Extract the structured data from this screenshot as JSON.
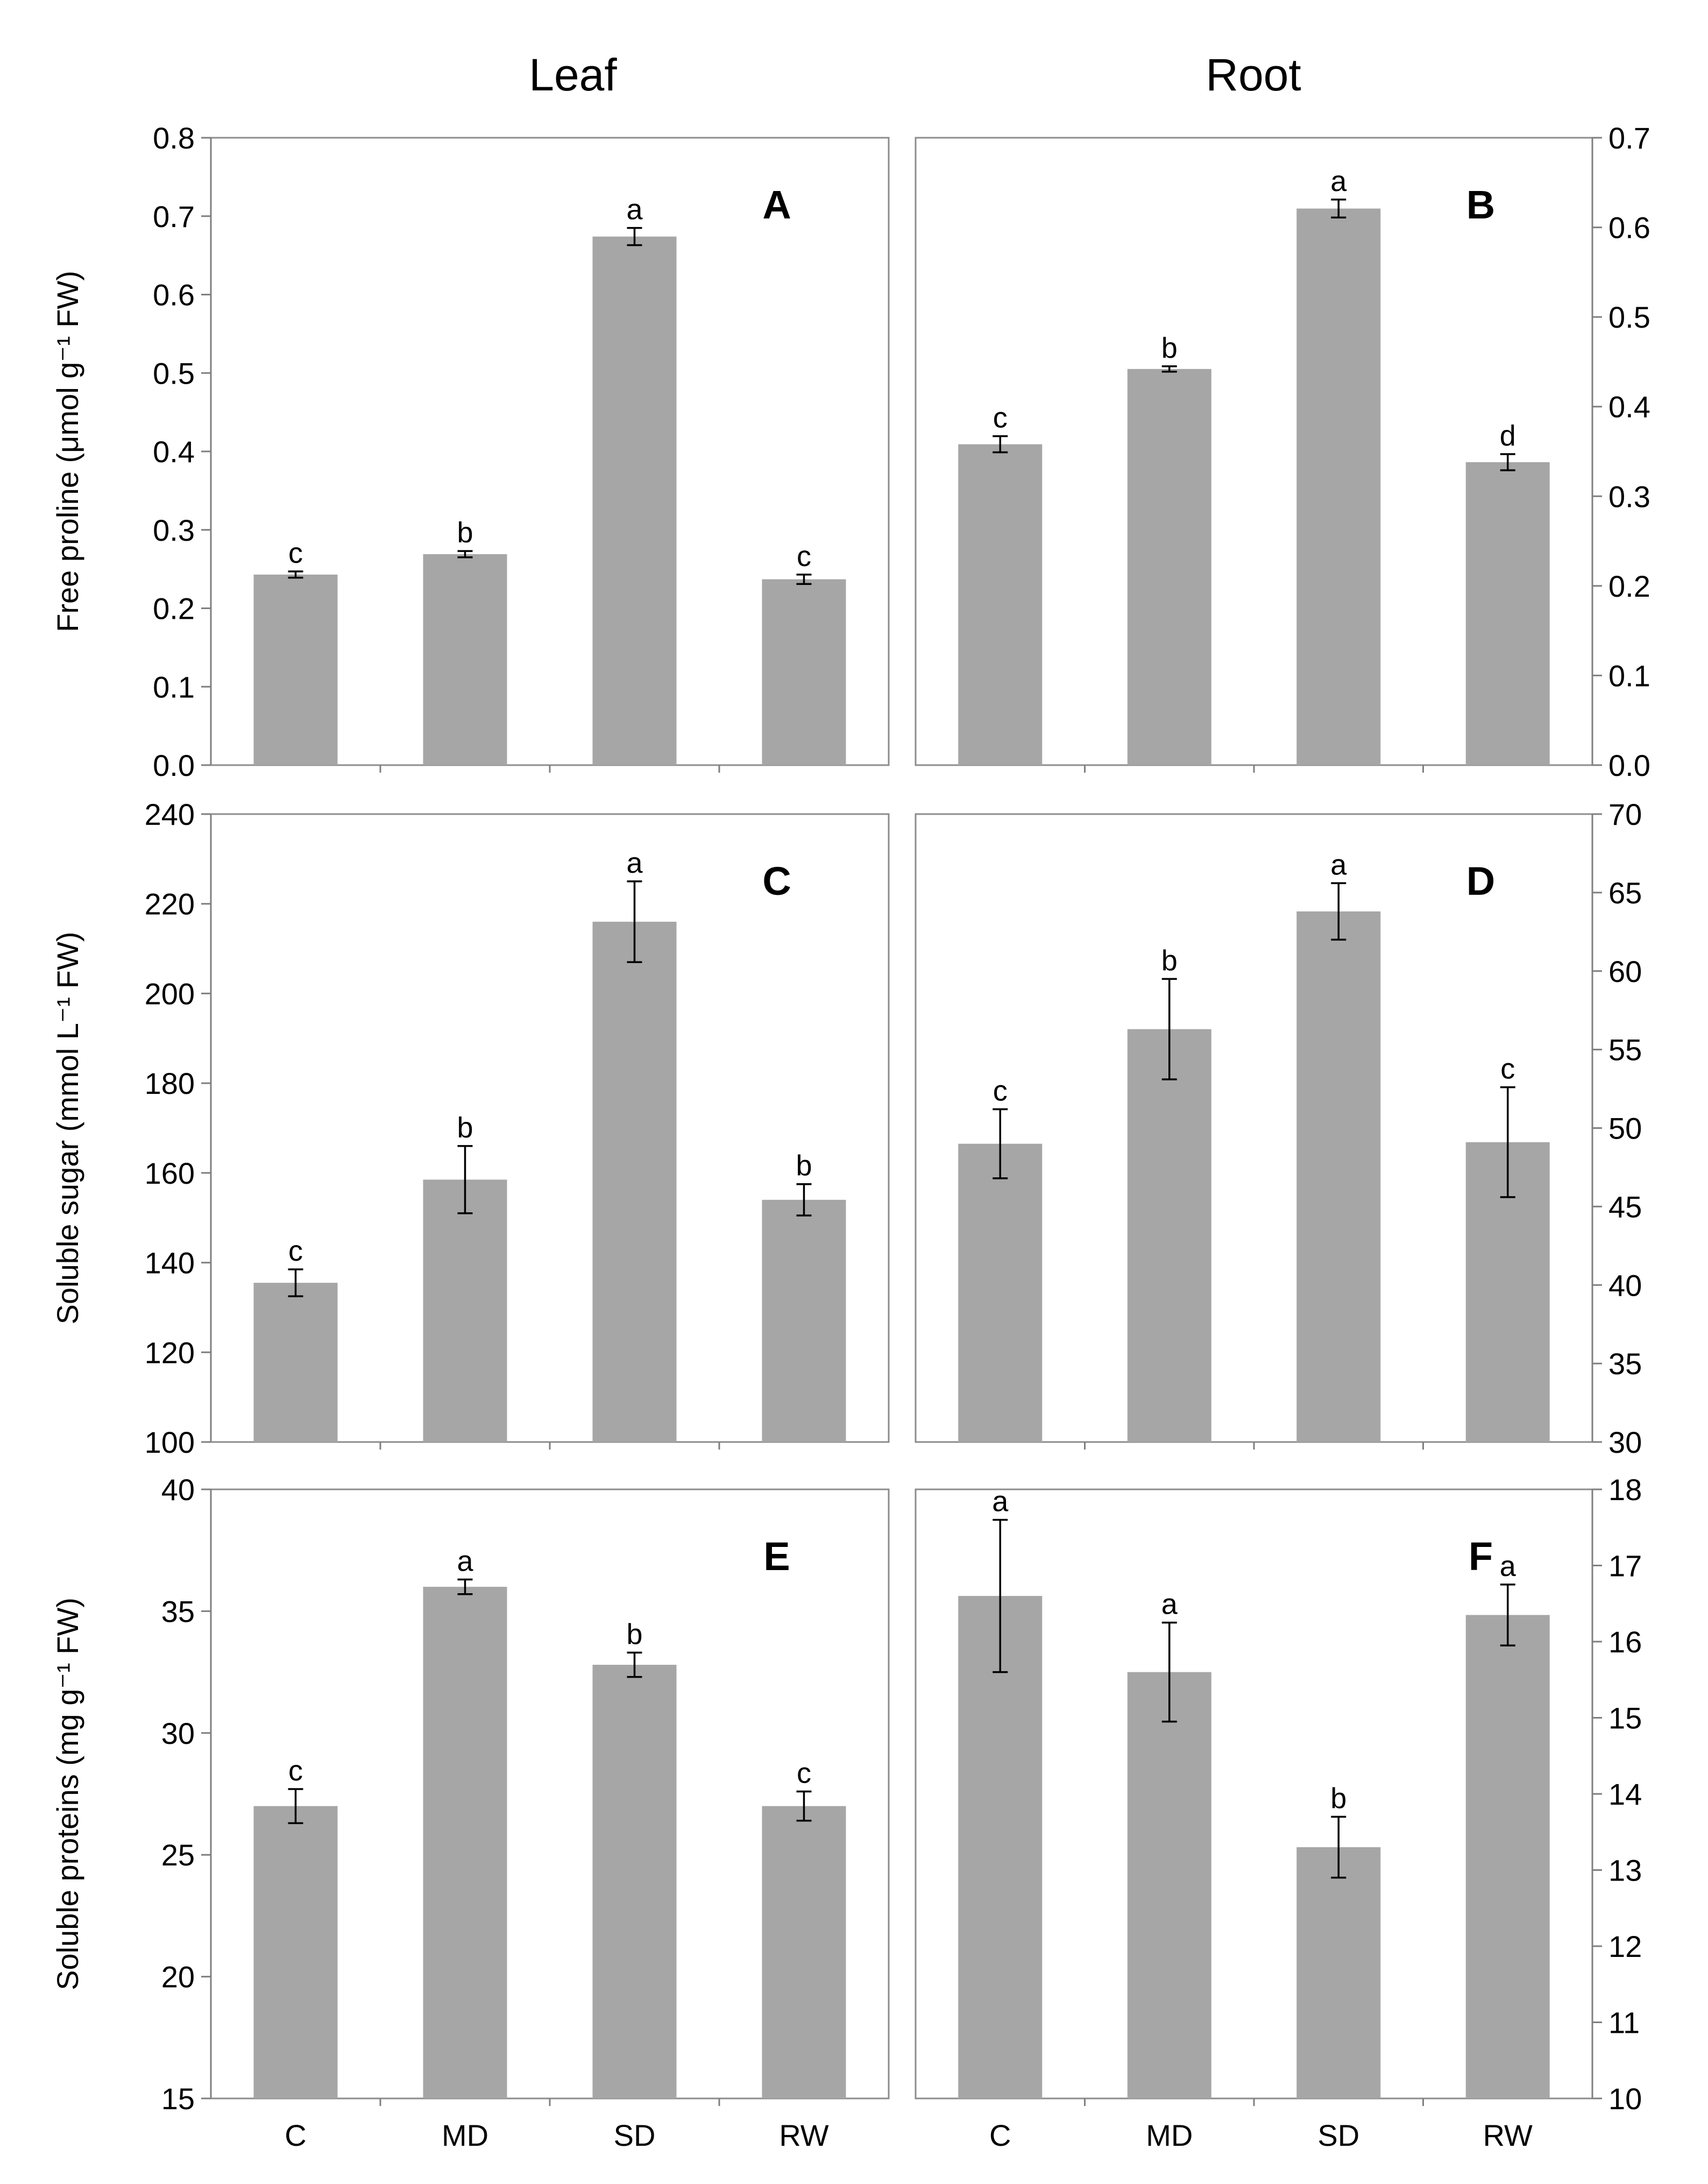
{
  "columns": [
    "Leaf",
    "Root"
  ],
  "categories": [
    "C",
    "MD",
    "SD",
    "RW"
  ],
  "colors": {
    "bar": "#a6a6a6",
    "frame": "#8c8c8c",
    "axis": "#7f7f7f",
    "text": "#000000"
  },
  "chart_data": [
    {
      "type": "bar",
      "panel": "A",
      "column": "Leaf",
      "ylabel": "Free proline (μmol g⁻¹ FW)",
      "ylim": [
        0,
        0.8
      ],
      "yticks": [
        "0.0",
        "0.1",
        "0.2",
        "0.3",
        "0.4",
        "0.5",
        "0.6",
        "0.7",
        "0.8"
      ],
      "categories": [
        "C",
        "MD",
        "SD",
        "RW"
      ],
      "values": [
        0.243,
        0.269,
        0.674,
        0.237
      ],
      "errors": [
        0.004,
        0.004,
        0.011,
        0.006
      ],
      "letters": [
        "c",
        "b",
        "a",
        "c"
      ]
    },
    {
      "type": "bar",
      "panel": "B",
      "column": "Root",
      "ylabel": "",
      "ylim": [
        0,
        0.7
      ],
      "yticks": [
        "0.0",
        "0.1",
        "0.2",
        "0.3",
        "0.4",
        "0.5",
        "0.6",
        "0.7"
      ],
      "categories": [
        "C",
        "MD",
        "SD",
        "RW"
      ],
      "values": [
        0.358,
        0.442,
        0.621,
        0.338
      ],
      "errors": [
        0.009,
        0.003,
        0.01,
        0.009
      ],
      "letters": [
        "c",
        "b",
        "a",
        "d"
      ]
    },
    {
      "type": "bar",
      "panel": "C",
      "column": "Leaf",
      "ylabel": "Soluble sugar (mmol L⁻¹ FW)",
      "ylim": [
        100,
        240
      ],
      "yticks": [
        "100",
        "120",
        "140",
        "160",
        "180",
        "200",
        "220",
        "240"
      ],
      "categories": [
        "C",
        "MD",
        "SD",
        "RW"
      ],
      "values": [
        135.5,
        158.5,
        216,
        154
      ],
      "errors": [
        3,
        7.5,
        9,
        3.5
      ],
      "letters": [
        "c",
        "b",
        "a",
        "b"
      ]
    },
    {
      "type": "bar",
      "panel": "D",
      "column": "Root",
      "ylabel": "",
      "ylim": [
        30,
        70
      ],
      "yticks": [
        "30",
        "35",
        "40",
        "45",
        "50",
        "55",
        "60",
        "65",
        "70"
      ],
      "categories": [
        "C",
        "MD",
        "SD",
        "RW"
      ],
      "values": [
        49,
        56.3,
        63.8,
        49.1
      ],
      "errors": [
        2.2,
        3.2,
        1.8,
        3.5
      ],
      "letters": [
        "c",
        "b",
        "a",
        "c"
      ]
    },
    {
      "type": "bar",
      "panel": "E",
      "column": "Leaf",
      "ylabel": "Soluble proteins  (mg g⁻¹ FW)",
      "ylim": [
        15,
        40
      ],
      "yticks": [
        "15",
        "20",
        "25",
        "30",
        "35",
        "40"
      ],
      "categories": [
        "C",
        "MD",
        "SD",
        "RW"
      ],
      "values": [
        27,
        36,
        32.8,
        27
      ],
      "errors": [
        0.7,
        0.3,
        0.5,
        0.6
      ],
      "letters": [
        "c",
        "a",
        "b",
        "c"
      ]
    },
    {
      "type": "bar",
      "panel": "F",
      "column": "Root",
      "ylabel": "",
      "ylim": [
        10,
        18
      ],
      "yticks": [
        "10",
        "11",
        "12",
        "13",
        "14",
        "15",
        "16",
        "17",
        "18"
      ],
      "categories": [
        "C",
        "MD",
        "SD",
        "RW"
      ],
      "values": [
        16.6,
        15.6,
        13.3,
        16.35
      ],
      "errors": [
        1.0,
        0.65,
        0.4,
        0.4
      ],
      "letters": [
        "a",
        "a",
        "b",
        "a"
      ]
    }
  ]
}
